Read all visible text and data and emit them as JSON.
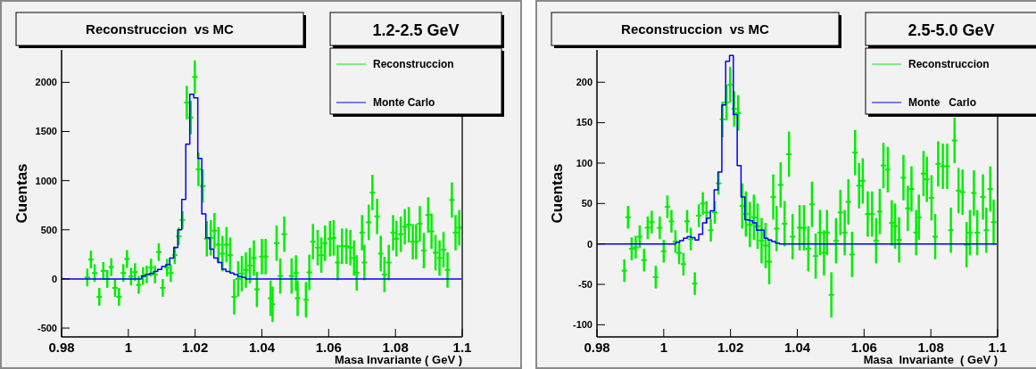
{
  "chart_data": [
    {
      "type": "scatter",
      "title": "Reconstruccion  vs MC",
      "subtitle": "1.2-2.5 GeV",
      "xlabel": "Masa Invariante ( GeV )",
      "ylabel": "Cuentas",
      "legend": "top right",
      "grid": false,
      "xlim": [
        0.98,
        1.1
      ],
      "xticks": [
        0.98,
        1,
        1.02,
        1.04,
        1.06,
        1.08,
        1.1
      ],
      "ylim": [
        -590,
        2330
      ],
      "yticks": [
        -500,
        0,
        500,
        1000,
        1500,
        2000
      ],
      "series": [
        {
          "name": "Reconstruccion",
          "color": "#00ee00",
          "x": [
            0.9877,
            0.9888,
            0.9899,
            0.9913,
            0.9925,
            0.9937,
            0.9949,
            0.996,
            0.9972,
            0.9985,
            0.9996,
            1.0008,
            1.002,
            1.0031,
            1.0044,
            1.0055,
            1.0068,
            1.008,
            1.0091,
            1.0103,
            1.0116,
            1.0127,
            1.0139,
            1.0151,
            1.0162,
            1.0175,
            1.0187,
            1.0199,
            1.021,
            1.0223,
            1.0235,
            1.0247,
            1.0258,
            1.027,
            1.0282,
            1.0294,
            1.0305,
            1.0317,
            1.0329,
            1.034,
            1.0352,
            1.0364,
            1.0376,
            1.0385,
            1.04,
            1.0411,
            1.0426,
            1.0432,
            1.0444,
            1.0455,
            1.0467,
            1.0489,
            1.0502,
            1.0507,
            1.0532,
            1.0542,
            1.0553,
            1.0567,
            1.0578,
            1.0589,
            1.0604,
            1.0615,
            1.0627,
            1.064,
            1.0653,
            1.0665,
            1.0676,
            1.0684,
            1.07,
            1.0707,
            1.072,
            1.0731,
            1.0745,
            1.0756,
            1.0767,
            1.078,
            1.0793,
            1.0803,
            1.0816,
            1.0828,
            1.084,
            1.0852,
            1.0862,
            1.0873,
            1.0885,
            1.0898,
            1.0908,
            1.092,
            1.0932,
            1.0944,
            1.0956,
            1.0969,
            1.098,
            1.0991
          ],
          "values": [
            15,
            197,
            60,
            -182,
            82,
            0,
            121,
            -91,
            -182,
            60,
            203,
            24,
            70,
            -61,
            30,
            45,
            115,
            45,
            273,
            -91,
            115,
            60,
            242,
            433,
            600,
            1794,
            1642,
            2054,
            1115,
            945,
            409,
            418,
            491,
            348,
            258,
            348,
            242,
            -182,
            0,
            55,
            91,
            136,
            212,
            -106,
            227,
            227,
            -197,
            -258,
            364,
            30,
            455,
            30,
            61,
            -197,
            -212,
            67,
            379,
            318,
            242,
            364,
            409,
            418,
            167,
            333,
            333,
            318,
            212,
            61,
            470,
            167,
            576,
            879,
            636,
            258,
            45,
            167,
            470,
            409,
            455,
            530,
            551,
            379,
            379,
            561,
            288,
            651,
            485,
            267,
            212,
            297,
            91,
            803,
            470,
            521
          ],
          "errors": [
            90,
            90,
            90,
            90,
            90,
            90,
            90,
            90,
            90,
            90,
            90,
            90,
            90,
            90,
            90,
            90,
            90,
            90,
            90,
            90,
            90,
            90,
            90,
            90,
            90,
            170,
            170,
            170,
            170,
            170,
            180,
            180,
            180,
            180,
            180,
            180,
            180,
            180,
            180,
            180,
            180,
            180,
            180,
            180,
            180,
            180,
            180,
            180,
            180,
            180,
            180,
            180,
            180,
            180,
            180,
            180,
            180,
            180,
            180,
            180,
            180,
            180,
            180,
            180,
            180,
            180,
            180,
            180,
            180,
            180,
            180,
            180,
            180,
            180,
            180,
            180,
            180,
            180,
            180,
            180,
            180,
            180,
            180,
            180,
            180,
            180,
            180,
            180,
            180,
            180,
            180,
            180,
            180,
            180
          ]
        },
        {
          "name": "Monte Carlo",
          "type": "step",
          "color": "#0000ff",
          "x": [
            0.98,
            1.004,
            1.0052,
            1.0064,
            1.0076,
            1.0088,
            1.01,
            1.0112,
            1.0124,
            1.0136,
            1.0148,
            1.016,
            1.0172,
            1.0184,
            1.0196,
            1.0208,
            1.022,
            1.0232,
            1.0244,
            1.0256,
            1.0268,
            1.028,
            1.0292,
            1.0304,
            1.0316,
            1.0328,
            1.034,
            1.0352,
            1.1
          ],
          "values": [
            0,
            30,
            45,
            55,
            76,
            97,
            127,
            145,
            212,
            318,
            500,
            809,
            1370,
            1879,
            1842,
            1227,
            661,
            418,
            303,
            212,
            167,
            100,
            76,
            61,
            45,
            24,
            15,
            0,
            0
          ]
        }
      ]
    },
    {
      "type": "scatter",
      "title": "Reconstruccion  vs MC",
      "subtitle": "2.5-5.0 GeV",
      "xlabel": "Masa  Invariante  ( GeV )",
      "ylabel": "Cuentas",
      "legend": "top right",
      "grid": false,
      "xlim": [
        0.98,
        1.1
      ],
      "xticks": [
        0.98,
        1,
        1.02,
        1.04,
        1.06,
        1.08,
        1.1
      ],
      "ylim": [
        -115,
        240
      ],
      "yticks": [
        -100,
        -50,
        0,
        50,
        100,
        150,
        200
      ],
      "series": [
        {
          "name": "Reconstruccion",
          "color": "#00ee00",
          "x": [
            0.9882,
            0.9893,
            0.9904,
            0.9916,
            0.9928,
            0.9941,
            0.9952,
            0.9964,
            0.9976,
            0.9988,
            1.0,
            1.0011,
            1.0023,
            1.0035,
            1.0046,
            1.0059,
            1.007,
            1.0081,
            1.0093,
            1.0105,
            1.0117,
            1.0128,
            1.0141,
            1.0153,
            1.0164,
            1.0176,
            1.0188,
            1.0199,
            1.0211,
            1.0223,
            1.0235,
            1.0246,
            1.0258,
            1.027,
            1.0281,
            1.0293,
            1.0305,
            1.0316,
            1.0328,
            1.0338,
            1.035,
            1.0362,
            1.0375,
            1.0386,
            1.0407,
            1.042,
            1.0433,
            1.0444,
            1.0455,
            1.0468,
            1.048,
            1.0489,
            1.0502,
            1.0516,
            1.0529,
            1.0542,
            1.0553,
            1.0564,
            1.0573,
            1.0585,
            1.0596,
            1.0611,
            1.0624,
            1.0636,
            1.0647,
            1.0658,
            1.0671,
            1.0683,
            1.0693,
            1.0705,
            1.0718,
            1.0731,
            1.0742,
            1.0756,
            1.0764,
            1.0778,
            1.0788,
            1.0802,
            1.0813,
            1.0822,
            1.0836,
            1.0849,
            1.086,
            1.0871,
            1.0883,
            1.0895,
            1.0907,
            1.0917,
            1.0929,
            1.0939,
            1.0956,
            1.0966,
            1.0978,
            1.0988
          ],
          "values": [
            -33,
            33,
            -6,
            -4,
            9,
            -20,
            20,
            27,
            -41,
            20,
            -9,
            46,
            28,
            3,
            -11,
            -25,
            28,
            6,
            -49,
            35,
            50,
            39,
            17,
            39,
            75,
            154,
            175,
            197,
            167,
            162,
            47,
            37,
            24,
            33,
            22,
            4,
            -2,
            -22,
            58,
            19,
            73,
            25,
            111,
            9,
            20,
            20,
            -6,
            49,
            -15,
            14,
            -11,
            14,
            -63,
            4,
            39,
            14,
            52,
            -13,
            113,
            72,
            78,
            37,
            37,
            4,
            40,
            97,
            92,
            26,
            22,
            5,
            82,
            44,
            68,
            14,
            33,
            87,
            80,
            57,
            9,
            99,
            96,
            96,
            17,
            128,
            66,
            64,
            -1,
            14,
            63,
            14,
            58,
            17,
            68,
            27
          ],
          "errors": [
            14,
            14,
            14,
            14,
            14,
            14,
            14,
            14,
            14,
            14,
            14,
            14,
            14,
            14,
            14,
            14,
            14,
            14,
            14,
            14,
            14,
            14,
            14,
            14,
            14,
            22,
            22,
            22,
            22,
            22,
            28,
            28,
            28,
            28,
            28,
            28,
            28,
            28,
            28,
            28,
            28,
            28,
            28,
            28,
            28,
            28,
            28,
            28,
            28,
            28,
            28,
            28,
            28,
            28,
            28,
            28,
            28,
            28,
            28,
            28,
            28,
            28,
            28,
            28,
            28,
            28,
            28,
            28,
            28,
            28,
            28,
            28,
            28,
            28,
            28,
            28,
            28,
            28,
            28,
            28,
            28,
            28,
            28,
            28,
            28,
            28,
            28,
            28,
            28,
            28,
            28,
            28,
            28,
            28
          ]
        },
        {
          "name": "Monte   Carlo",
          "type": "step",
          "color": "#0000ff",
          "x": [
            0.98,
            1.0036,
            1.00475,
            1.0059,
            1.00705,
            1.0082,
            1.00935,
            1.0105,
            1.01165,
            1.0128,
            1.01395,
            1.0151,
            1.01625,
            1.0174,
            1.01855,
            1.0197,
            1.02085,
            1.022,
            1.02315,
            1.0243,
            1.02545,
            1.0266,
            1.02775,
            1.0289,
            1.03005,
            1.0312,
            1.03235,
            1.0335,
            1.03465,
            1.1
          ],
          "values": [
            0,
            2,
            4,
            7,
            9,
            8,
            5,
            12,
            26,
            32,
            41,
            67,
            89,
            172,
            226,
            233,
            160,
            97,
            58,
            30,
            29,
            26,
            17,
            17,
            7,
            5,
            3,
            1,
            0,
            0
          ]
        }
      ]
    }
  ]
}
